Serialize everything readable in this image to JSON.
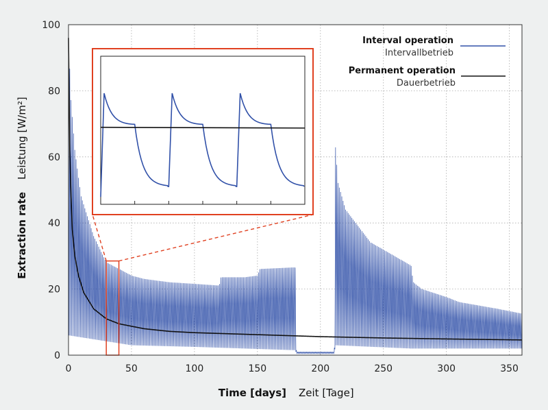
{
  "chart_data": {
    "type": "line",
    "xlabel": {
      "main": "Time [days]",
      "secondary": "Zeit  [Tage]"
    },
    "ylabel": {
      "main": "Extraction rate",
      "secondary": "Leistung [W/m²]"
    },
    "xlim": [
      0,
      360
    ],
    "ylim": [
      0,
      100
    ],
    "xticks": [
      0,
      50,
      100,
      150,
      200,
      250,
      300,
      350
    ],
    "yticks": [
      0,
      20,
      40,
      60,
      80,
      100
    ],
    "grid": true,
    "legend_position": "top-right",
    "series": [
      {
        "name": "Interval operation",
        "name_secondary": "Intervallbetrieb",
        "color": "#3050a8",
        "pattern": "daily on/off cycling",
        "envelope_peak": [
          [
            0,
            96
          ],
          [
            2,
            77
          ],
          [
            5,
            62
          ],
          [
            10,
            48
          ],
          [
            20,
            36
          ],
          [
            30,
            28
          ],
          [
            50,
            24
          ],
          [
            60,
            23
          ],
          [
            80,
            22
          ],
          [
            100,
            21.5
          ],
          [
            119,
            21
          ],
          [
            120,
            21.5
          ],
          [
            121,
            23.5
          ],
          [
            140,
            23.5
          ],
          [
            150,
            24
          ],
          [
            152,
            26
          ],
          [
            180,
            26.5
          ],
          [
            181,
            1
          ],
          [
            211,
            1
          ],
          [
            212,
            63
          ],
          [
            214,
            52
          ],
          [
            220,
            44
          ],
          [
            240,
            34
          ],
          [
            272,
            27
          ],
          [
            273,
            24
          ],
          [
            274,
            22
          ],
          [
            280,
            20
          ],
          [
            300,
            17.5
          ],
          [
            310,
            16
          ],
          [
            340,
            14
          ],
          [
            360,
            12.5
          ]
        ],
        "envelope_trough": [
          [
            0,
            6
          ],
          [
            50,
            3
          ],
          [
            100,
            2.5
          ],
          [
            180,
            1.5
          ],
          [
            181,
            0.5
          ],
          [
            211,
            0.5
          ],
          [
            212,
            3
          ],
          [
            272,
            2
          ],
          [
            273,
            2
          ],
          [
            360,
            2
          ]
        ]
      },
      {
        "name": "Permanent operation",
        "name_secondary": "Dauerbetrieb",
        "color": "#111111",
        "points": [
          [
            0,
            96
          ],
          [
            1,
            62
          ],
          [
            2,
            48
          ],
          [
            3,
            38
          ],
          [
            5,
            30
          ],
          [
            8,
            24
          ],
          [
            12,
            19
          ],
          [
            20,
            14
          ],
          [
            30,
            11
          ],
          [
            40,
            9.5
          ],
          [
            60,
            8
          ],
          [
            80,
            7.2
          ],
          [
            100,
            6.8
          ],
          [
            150,
            6.2
          ],
          [
            200,
            5.6
          ],
          [
            250,
            5.2
          ],
          [
            300,
            4.9
          ],
          [
            360,
            4.6
          ]
        ]
      }
    ],
    "highlight_window": {
      "x": [
        30,
        40
      ],
      "y": [
        0,
        28.5
      ]
    },
    "inset": {
      "description_color": "#e04020",
      "x": [
        0,
        3
      ],
      "y": [
        0,
        1
      ],
      "series": [
        {
          "name": "Interval operation",
          "color": "#3050a8",
          "cycle": {
            "period": 1,
            "on_fraction": 0.5,
            "start": 0.05,
            "rise_to": 0.75,
            "knee": 0.54,
            "end": 0.12
          }
        },
        {
          "name": "Permanent operation",
          "color": "#111111",
          "level_start": 0.52,
          "level_end": 0.515
        }
      ]
    }
  }
}
